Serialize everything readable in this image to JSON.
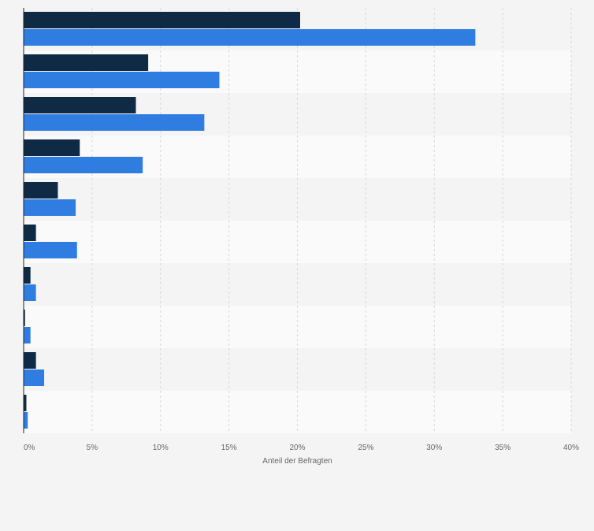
{
  "chart_data": {
    "type": "bar",
    "orientation": "horizontal",
    "categories": [
      "",
      "",
      "",
      "",
      "",
      "",
      "",
      "",
      "",
      ""
    ],
    "series": [
      {
        "color": "#0f2a44",
        "values": [
          20.2,
          9.1,
          8.2,
          4.1,
          2.5,
          0.9,
          0.5,
          0.1,
          0.9,
          0.2
        ]
      },
      {
        "color": "#2f7de1",
        "values": [
          33.0,
          14.3,
          13.2,
          8.7,
          3.8,
          3.9,
          0.9,
          0.5,
          1.5,
          0.3
        ]
      }
    ],
    "xlabel": "Anteil der Befragten",
    "xlim": [
      0,
      40
    ],
    "xticks": [
      0,
      5,
      10,
      15,
      20,
      25,
      30,
      35,
      40
    ],
    "xtick_labels": [
      "0%",
      "5%",
      "10%",
      "15%",
      "20%",
      "25%",
      "30%",
      "35%",
      "40%"
    ],
    "grid": true,
    "legend": "none"
  }
}
